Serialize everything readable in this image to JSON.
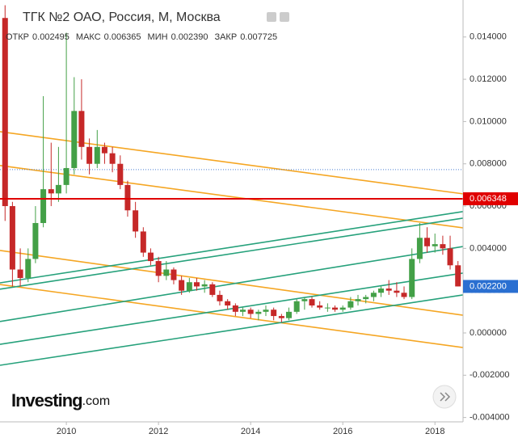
{
  "chart_data": {
    "type": "candlestick",
    "title": "ТГК №2 ОАО, Россия, М, Москва",
    "legend": {
      "labels": [
        "ОТКР",
        "МАКС",
        "МИН",
        "ЗАКР"
      ],
      "values": [
        0.002495,
        0.006365,
        0.00239,
        0.007725
      ],
      "value_labels": [
        "0.002495",
        "0.006365",
        "0.002390",
        "0.007725"
      ]
    },
    "logo": "Investing",
    "logo_suffix": ".com",
    "up_color": "#43a047",
    "down_color": "#c62828",
    "x": [
      2008.67,
      2008.83,
      2009.0,
      2009.17,
      2009.33,
      2009.5,
      2009.67,
      2009.83,
      2010.0,
      2010.17,
      2010.33,
      2010.5,
      2010.67,
      2010.83,
      2011.0,
      2011.17,
      2011.33,
      2011.5,
      2011.67,
      2011.83,
      2012.0,
      2012.17,
      2012.33,
      2012.5,
      2012.67,
      2012.83,
      2013.0,
      2013.17,
      2013.33,
      2013.5,
      2013.67,
      2013.83,
      2014.0,
      2014.17,
      2014.33,
      2014.5,
      2014.67,
      2014.83,
      2015.0,
      2015.17,
      2015.33,
      2015.5,
      2015.67,
      2015.83,
      2016.0,
      2016.17,
      2016.33,
      2016.5,
      2016.67,
      2016.83,
      2017.0,
      2017.17,
      2017.33,
      2017.5,
      2017.67,
      2017.83,
      2018.0,
      2018.17,
      2018.33,
      2018.5
    ],
    "open": [
      0.0149,
      0.006,
      0.003,
      0.0026,
      0.0035,
      0.0052,
      0.0068,
      0.0066,
      0.007,
      0.0078,
      0.0105,
      0.0088,
      0.008,
      0.0088,
      0.0085,
      0.008,
      0.007,
      0.0058,
      0.0048,
      0.0038,
      0.0034,
      0.0027,
      0.003,
      0.0025,
      0.002,
      0.0024,
      0.0022,
      0.0023,
      0.0018,
      0.0015,
      0.0013,
      0.001,
      0.0011,
      0.0009,
      0.001,
      0.0011,
      0.0008,
      0.0007,
      0.001,
      0.0015,
      0.0016,
      0.0013,
      0.0012,
      0.0012,
      0.0011,
      0.0012,
      0.0015,
      0.0016,
      0.0017,
      0.0019,
      0.0021,
      0.002,
      0.0019,
      0.0017,
      0.0035,
      0.0045,
      0.0041,
      0.0042,
      0.004,
      0.0032
    ],
    "high": [
      0.0155,
      0.0062,
      0.004,
      0.004,
      0.006,
      0.0112,
      0.009,
      0.0088,
      0.0142,
      0.0121,
      0.012,
      0.0092,
      0.0096,
      0.009,
      0.0088,
      0.0084,
      0.0072,
      0.0062,
      0.005,
      0.004,
      0.0036,
      0.0034,
      0.0031,
      0.0027,
      0.0026,
      0.0026,
      0.0025,
      0.0024,
      0.002,
      0.0016,
      0.0014,
      0.0012,
      0.0012,
      0.0011,
      0.0013,
      0.0012,
      0.0009,
      0.0012,
      0.0016,
      0.0017,
      0.0017,
      0.0015,
      0.0014,
      0.0013,
      0.0013,
      0.0017,
      0.0018,
      0.0018,
      0.002,
      0.0022,
      0.0025,
      0.0024,
      0.0022,
      0.004,
      0.0052,
      0.005,
      0.0047,
      0.0046,
      0.0046,
      0.0034
    ],
    "low": [
      0.0053,
      0.0022,
      0.0022,
      0.0024,
      0.0033,
      0.005,
      0.006,
      0.0062,
      0.0066,
      0.0075,
      0.0082,
      0.0075,
      0.0078,
      0.008,
      0.0076,
      0.0068,
      0.0055,
      0.0045,
      0.0036,
      0.0032,
      0.0024,
      0.0025,
      0.0023,
      0.0018,
      0.0019,
      0.002,
      0.0019,
      0.0017,
      0.0013,
      0.0011,
      0.0008,
      0.0008,
      0.0007,
      0.0006,
      0.0008,
      0.0006,
      0.0005,
      0.0006,
      0.0009,
      0.0011,
      0.0012,
      0.0011,
      0.001,
      0.001,
      0.001,
      0.0011,
      0.0013,
      0.0014,
      0.0015,
      0.0017,
      0.0018,
      0.0017,
      0.0016,
      0.0016,
      0.0033,
      0.0038,
      0.0038,
      0.0037,
      0.003,
      0.0022
    ],
    "close": [
      0.006,
      0.003,
      0.0026,
      0.0035,
      0.0052,
      0.0068,
      0.0066,
      0.007,
      0.0078,
      0.0105,
      0.0088,
      0.008,
      0.0088,
      0.0085,
      0.008,
      0.007,
      0.0058,
      0.0048,
      0.0038,
      0.0034,
      0.0027,
      0.003,
      0.0025,
      0.002,
      0.0024,
      0.0022,
      0.0023,
      0.0018,
      0.0015,
      0.0013,
      0.001,
      0.0011,
      0.0009,
      0.001,
      0.0011,
      0.0008,
      0.0007,
      0.001,
      0.0015,
      0.0016,
      0.0013,
      0.0012,
      0.0012,
      0.0011,
      0.0012,
      0.0015,
      0.0016,
      0.0017,
      0.0019,
      0.0021,
      0.002,
      0.0019,
      0.0017,
      0.0035,
      0.0045,
      0.0041,
      0.0042,
      0.004,
      0.0032,
      0.0022
    ],
    "trend_lines": [
      {
        "color": "#f5a623",
        "x": [
          2008.56,
          2018.61
        ],
        "y": [
          0.00952,
          0.00658
        ]
      },
      {
        "color": "#f5a623",
        "x": [
          2008.56,
          2018.61
        ],
        "y": [
          0.00792,
          0.00497
        ]
      },
      {
        "color": "#f5a623",
        "x": [
          2008.56,
          2018.61
        ],
        "y": [
          0.0039,
          0.00084
        ]
      },
      {
        "color": "#f5a623",
        "x": [
          2008.56,
          2018.61
        ],
        "y": [
          0.00229,
          -0.00069
        ]
      },
      {
        "color": "#26a17b",
        "x": [
          2008.56,
          2018.61
        ],
        "y": [
          0.00237,
          0.00574
        ]
      },
      {
        "color": "#26a17b",
        "x": [
          2008.56,
          2018.61
        ],
        "y": [
          0.00207,
          0.00543
        ]
      },
      {
        "color": "#26a17b",
        "x": [
          2008.56,
          2018.61
        ],
        "y": [
          0.00054,
          0.00409
        ]
      },
      {
        "color": "#26a17b",
        "x": [
          2008.56,
          2018.61
        ],
        "y": [
          -0.00054,
          0.00283
        ]
      },
      {
        "color": "#26a17b",
        "x": [
          2008.56,
          2018.61
        ],
        "y": [
          -0.00153,
          0.0018
        ]
      }
    ],
    "price_lines": [
      {
        "value": 0.006348,
        "label": "0.006348",
        "color": "#e00000",
        "line": true
      },
      {
        "value": 0.0022,
        "label": "0.002200",
        "color": "#2a6fd1",
        "line": false
      }
    ],
    "close_line_color": "#4a7fd4",
    "xlim": [
      2008.56,
      2018.61
    ],
    "ylim": [
      -0.00497,
      0.01575
    ],
    "xticks": [
      2010,
      2012,
      2014,
      2016,
      2018
    ],
    "yticks": [
      {
        "value": -0.004,
        "label": "-0.004000"
      },
      {
        "value": -0.002,
        "label": "-0.002000"
      },
      {
        "value": 0,
        "label": "0.000000"
      },
      {
        "value": 0.002,
        "label": "0.002000"
      },
      {
        "value": 0.004,
        "label": "0.004000"
      },
      {
        "value": 0.006,
        "label": "0.006000"
      },
      {
        "value": 0.008,
        "label": "0.008000"
      },
      {
        "value": 0.01,
        "label": "0.010000"
      },
      {
        "value": 0.012,
        "label": "0.012000"
      },
      {
        "value": 0.014,
        "label": "0.014000"
      }
    ]
  }
}
